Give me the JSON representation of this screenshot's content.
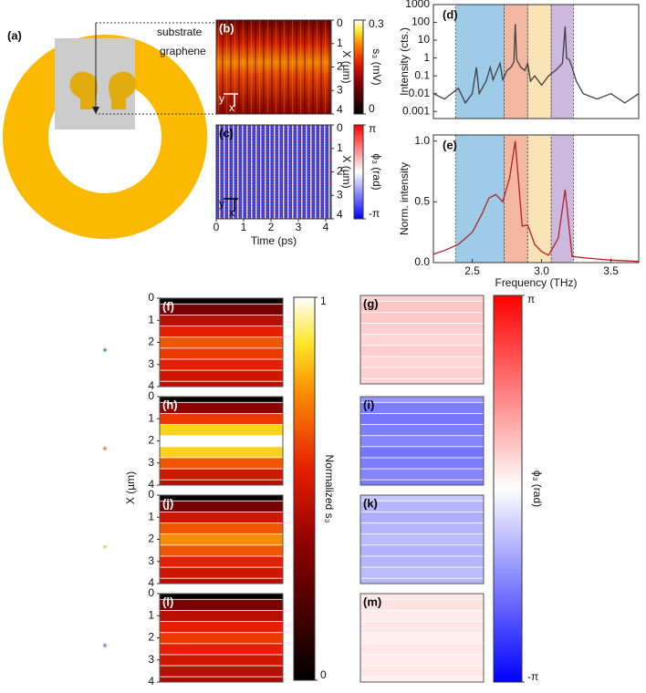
{
  "schematic": {
    "label": "(a)",
    "substrate": "substrate",
    "graphene": "graphene"
  },
  "chart_data": [
    {
      "type": "heatmap",
      "label": "(b)",
      "ylabel": "X (µm)",
      "ylim": [
        0,
        4
      ],
      "yticks": [
        0,
        1,
        2,
        3,
        4
      ],
      "icon_y": "y",
      "icon_x": "x",
      "colorbar": {
        "label": "s₃ (mV)",
        "lim": [
          0,
          0.3
        ],
        "ticks": [
          0,
          0.3
        ],
        "map": "hot"
      }
    },
    {
      "type": "heatmap",
      "label": "(c)",
      "ylabel": "X (µm)",
      "ylim": [
        0,
        4
      ],
      "yticks": [
        0,
        1,
        2,
        3,
        4
      ],
      "xlabel": "Time (ps)",
      "xlim": [
        0,
        4.2
      ],
      "xticks": [
        0,
        1,
        2,
        3,
        4
      ],
      "icon_y": "y",
      "icon_x": "x",
      "colorbar": {
        "label": "ϕ₃ (rad)",
        "lim": [
          -3.14159,
          3.14159
        ],
        "ticks": [
          {
            "value": 3.14159,
            "label": "π"
          },
          {
            "value": -3.14159,
            "label": "-π"
          }
        ],
        "map": "bwr"
      }
    },
    {
      "type": "line",
      "label": "(d)",
      "ylabel": "Intensity (cts.)",
      "log_y": true,
      "ylim": [
        0.0004,
        1000
      ],
      "yticks": [
        1000,
        100,
        10,
        1,
        0.1,
        0.01,
        0.001
      ],
      "xlim": [
        2.22,
        3.7
      ],
      "color": "#404040",
      "bands": [
        {
          "from": 2.38,
          "to": 2.73,
          "color": "#9ecbe8"
        },
        {
          "from": 2.73,
          "to": 2.9,
          "color": "#f2b8a2"
        },
        {
          "from": 2.9,
          "to": 3.07,
          "color": "#fbe3b8"
        },
        {
          "from": 3.07,
          "to": 3.23,
          "color": "#cdb8e0"
        }
      ],
      "x": [
        2.22,
        2.3,
        2.4,
        2.45,
        2.5,
        2.53,
        2.55,
        2.6,
        2.63,
        2.65,
        2.7,
        2.72,
        2.75,
        2.78,
        2.8,
        2.81,
        2.82,
        2.85,
        2.88,
        2.9,
        2.92,
        2.95,
        3.0,
        3.05,
        3.1,
        3.15,
        3.17,
        3.18,
        3.2,
        3.22,
        3.25,
        3.3,
        3.4,
        3.5,
        3.6,
        3.7
      ],
      "values": [
        0.01,
        0.005,
        0.02,
        0.003,
        0.01,
        0.3,
        0.01,
        0.05,
        0.3,
        0.06,
        0.5,
        0.06,
        0.2,
        0.3,
        0.6,
        80,
        0.8,
        0.3,
        0.2,
        0.5,
        0.05,
        0.1,
        0.03,
        0.1,
        0.2,
        0.5,
        60,
        1,
        0.8,
        0.3,
        0.05,
        0.01,
        0.005,
        0.01,
        0.003,
        0.01
      ]
    },
    {
      "type": "line",
      "label": "(e)",
      "ylabel": "Norm. intensity",
      "xlabel": "Frequency (THz)",
      "ylim": [
        0,
        1.05
      ],
      "yticks": [
        {
          "value": 0,
          "label": "0.0"
        },
        0.5,
        {
          "value": 1,
          "label": "1.0"
        }
      ],
      "xlim": [
        2.22,
        3.7
      ],
      "xticks": [
        2.5,
        {
          "value": 3,
          "label": "3.0"
        },
        3.5
      ],
      "color": "#b22222",
      "bands": [
        {
          "from": 2.38,
          "to": 2.73,
          "color": "#9ecbe8"
        },
        {
          "from": 2.73,
          "to": 2.9,
          "color": "#f2b8a2"
        },
        {
          "from": 2.9,
          "to": 3.07,
          "color": "#fbe3b8"
        },
        {
          "from": 3.07,
          "to": 3.23,
          "color": "#cdb8e0"
        }
      ],
      "x": [
        2.22,
        2.3,
        2.4,
        2.5,
        2.57,
        2.62,
        2.67,
        2.72,
        2.77,
        2.81,
        2.86,
        2.9,
        2.95,
        3.0,
        3.05,
        3.12,
        3.17,
        3.22,
        3.3,
        3.4,
        3.5,
        3.7
      ],
      "values": [
        0.07,
        0.1,
        0.15,
        0.25,
        0.4,
        0.53,
        0.56,
        0.5,
        0.7,
        1.0,
        0.3,
        0.31,
        0.15,
        0.09,
        0.06,
        0.2,
        0.6,
        0.05,
        0.04,
        0.03,
        0.02,
        0.01
      ]
    },
    {
      "type": "profiles",
      "ylabel": "X (µm)",
      "ylim": [
        0,
        4
      ],
      "yticks": [
        0,
        1,
        2,
        3,
        4
      ],
      "x": [
        0,
        0.5,
        1,
        1.5,
        2,
        2.5,
        3,
        3.5,
        4
      ],
      "colorbar": {
        "label": "Normalized s₃",
        "lim": [
          0,
          1
        ],
        "ticks": [
          1,
          0
        ],
        "map": "hot"
      },
      "markers": [
        {
          "text": "*",
          "color": "#3a8fd0"
        },
        {
          "text": "*",
          "color": "#e07a4f"
        },
        {
          "text": "*",
          "color": "#f0c870"
        },
        {
          "text": "*",
          "color": "#9b6fbf"
        }
      ],
      "panels": [
        {
          "label": "(f)",
          "values": [
            0.02,
            0.3,
            0.45,
            0.55,
            0.65,
            0.6,
            0.55,
            0.5,
            0.45
          ]
        },
        {
          "label": "(h)",
          "values": [
            0.02,
            0.35,
            0.6,
            0.85,
            1.0,
            0.85,
            0.65,
            0.5,
            0.45
          ]
        },
        {
          "label": "(j)",
          "values": [
            0.02,
            0.3,
            0.5,
            0.65,
            0.75,
            0.65,
            0.55,
            0.5,
            0.45
          ]
        },
        {
          "label": "(l)",
          "values": [
            0.02,
            0.3,
            0.45,
            0.55,
            0.6,
            0.55,
            0.5,
            0.45,
            0.42
          ]
        }
      ]
    },
    {
      "type": "profiles",
      "x": [
        0,
        0.5,
        1,
        1.5,
        2,
        2.5,
        3,
        3.5,
        4
      ],
      "ylim": [
        0,
        4
      ],
      "colorbar": {
        "label": "ϕ₃ (rad)",
        "lim": [
          -3.14159,
          3.14159
        ],
        "ticks": [
          {
            "value": 3.14159,
            "label": "π"
          },
          {
            "value": -3.14159,
            "label": "-π"
          }
        ],
        "map": "bwr"
      },
      "panels": [
        {
          "label": "(g)",
          "values": [
            0.55,
            0.7,
            0.65,
            0.6,
            0.5,
            0.6,
            0.5,
            0.55,
            0.5
          ]
        },
        {
          "label": "(i)",
          "values": [
            -1.3,
            -1.6,
            -1.7,
            -1.6,
            -1.5,
            -1.7,
            -1.6,
            -1.5,
            -1.6
          ]
        },
        {
          "label": "(k)",
          "values": [
            -0.7,
            -0.9,
            -1.0,
            -0.9,
            -0.85,
            -0.95,
            -0.9,
            -0.85,
            -0.9
          ]
        },
        {
          "label": "(m)",
          "values": [
            0.3,
            0.35,
            0.25,
            0.3,
            0.2,
            0.3,
            0.25,
            0.3,
            0.2
          ]
        }
      ]
    }
  ]
}
